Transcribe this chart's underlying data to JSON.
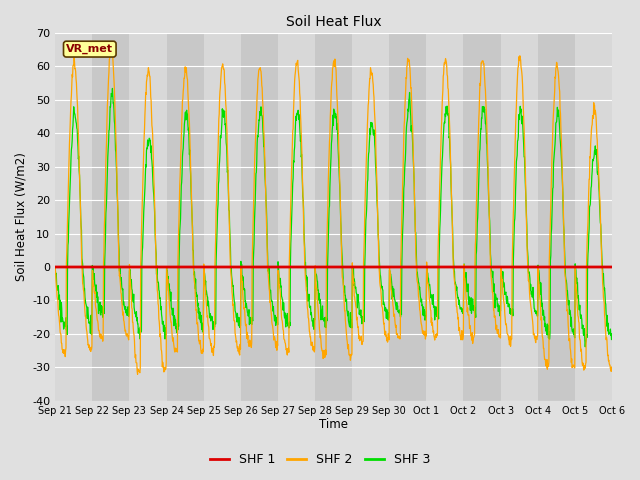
{
  "title": "Soil Heat Flux",
  "xlabel": "Time",
  "ylabel": "Soil Heat Flux (W/m2)",
  "ylim": [
    -40,
    70
  ],
  "yticks": [
    -40,
    -30,
    -20,
    -10,
    0,
    10,
    20,
    30,
    40,
    50,
    60,
    70
  ],
  "background_color": "#e0e0e0",
  "plot_bg_color": "#d8d8d8",
  "col_bg_even": "#d0d0d0",
  "col_bg_odd": "#c8c8c8",
  "shf1_color": "#dd0000",
  "shf2_color": "#ffa500",
  "shf3_color": "#00dd00",
  "legend_label1": "SHF 1",
  "legend_label2": "SHF 2",
  "legend_label3": "SHF 3",
  "watermark": "VR_met",
  "xtick_labels": [
    "Sep 21",
    "Sep 22",
    "Sep 23",
    "Sep 24",
    "Sep 25",
    "Sep 26",
    "Sep 27",
    "Sep 28",
    "Sep 29",
    "Sep 30",
    "Oct 1",
    "Oct 2",
    "Oct 3",
    "Oct 4",
    "Oct 5",
    "Oct 6"
  ],
  "n_days": 15,
  "pts_per_day": 96
}
